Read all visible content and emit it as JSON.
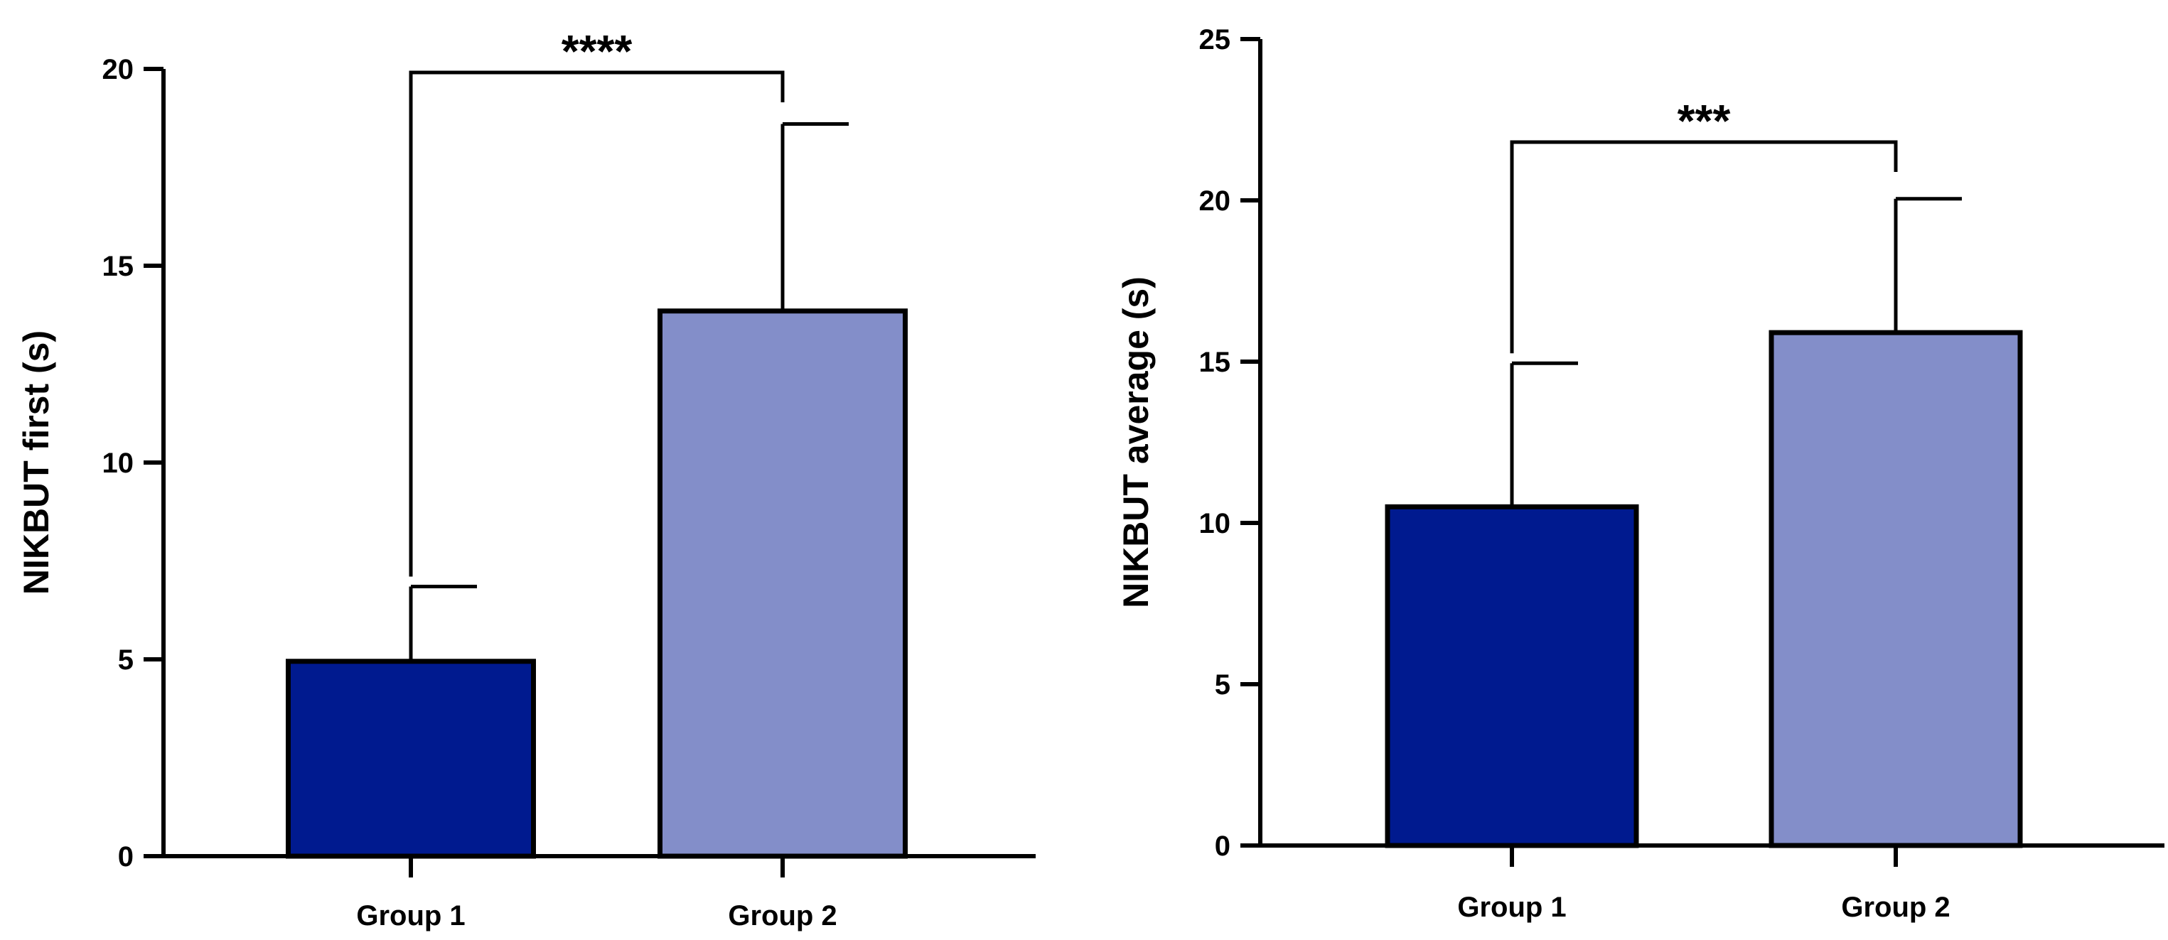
{
  "chart_data": [
    {
      "type": "bar",
      "ylabel": "NIKBUT first (s)",
      "xlabel": "",
      "title": "",
      "categories": [
        "Group 1",
        "Group 2"
      ],
      "values": [
        4.95,
        13.85
      ],
      "error_upper": [
        6.85,
        18.6
      ],
      "colors": [
        "#001a8f",
        "#838ec9"
      ],
      "ylim": [
        0,
        20
      ],
      "yticks": [
        0,
        5,
        10,
        15,
        20
      ],
      "ytick_labels": [
        "0",
        "5",
        "10",
        "15",
        "20"
      ],
      "significance": {
        "between": [
          "Group 1",
          "Group 2"
        ],
        "label": "****"
      }
    },
    {
      "type": "bar",
      "ylabel": "NIKBUT average (s)",
      "xlabel": "",
      "title": "",
      "categories": [
        "Group 1",
        "Group 2"
      ],
      "values": [
        10.5,
        15.9
      ],
      "error_upper": [
        14.95,
        20.05
      ],
      "colors": [
        "#001a8f",
        "#838ec9"
      ],
      "ylim": [
        0,
        25
      ],
      "yticks": [
        0,
        5,
        10,
        15,
        20,
        25
      ],
      "ytick_labels": [
        "0",
        "5",
        "10",
        "15",
        "20",
        "25"
      ],
      "significance": {
        "between": [
          "Group 1",
          "Group 2"
        ],
        "label": "***"
      }
    }
  ]
}
